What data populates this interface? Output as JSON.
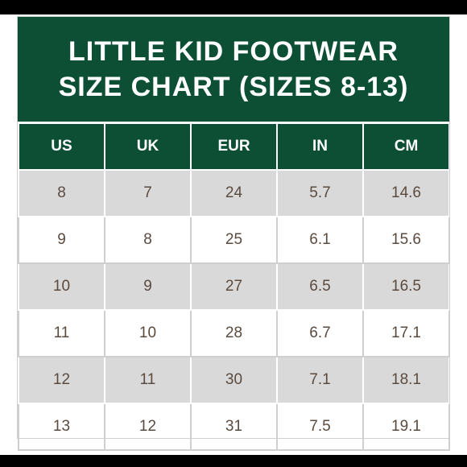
{
  "title": {
    "line1": "LITTLE KID FOOTWEAR",
    "line2": "SIZE CHART (SIZES 8-13)"
  },
  "colors": {
    "header_green": "#0c4f35",
    "shaded_row": "#d9d9d9",
    "text": "#5b4a3e"
  },
  "table": {
    "headers": [
      "US",
      "UK",
      "EUR",
      "IN",
      "CM"
    ],
    "rows": [
      [
        "8",
        "7",
        "24",
        "5.7",
        "14.6"
      ],
      [
        "9",
        "8",
        "25",
        "6.1",
        "15.6"
      ],
      [
        "10",
        "9",
        "27",
        "6.5",
        "16.5"
      ],
      [
        "11",
        "10",
        "28",
        "6.7",
        "17.1"
      ],
      [
        "12",
        "11",
        "30",
        "7.1",
        "18.1"
      ],
      [
        "13",
        "12",
        "31",
        "7.5",
        "19.1"
      ]
    ]
  }
}
